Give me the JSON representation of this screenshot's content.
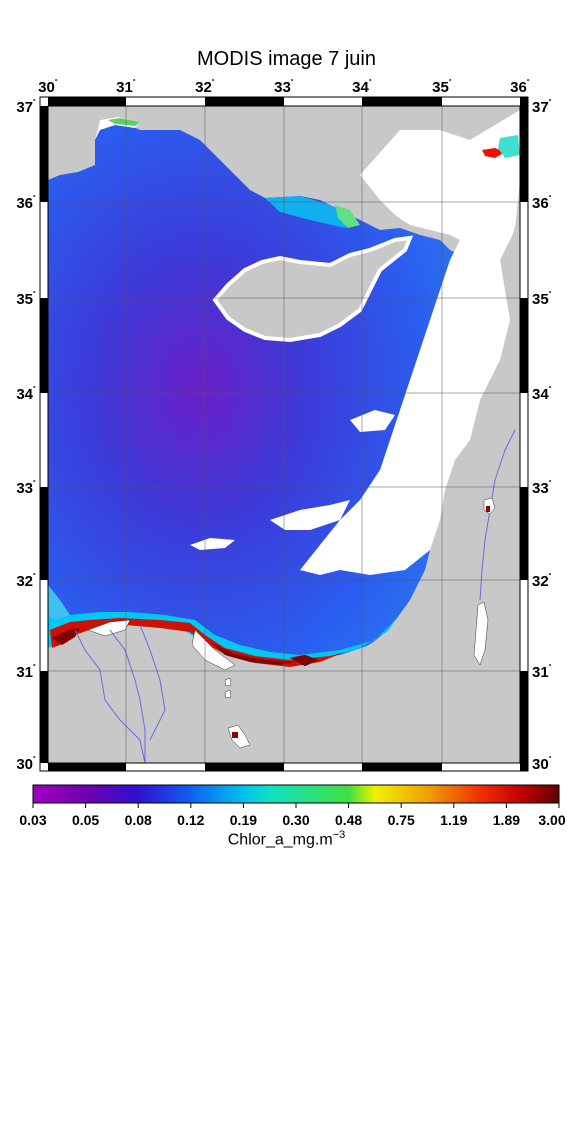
{
  "title": "MODIS image 7 juin",
  "map": {
    "lon_labels": [
      "30",
      "31",
      "32",
      "33",
      "34",
      "35",
      "36"
    ],
    "lat_labels": [
      "37",
      "36",
      "35",
      "34",
      "33",
      "32",
      "31",
      "30"
    ],
    "degree_symbol": "˚",
    "colors": {
      "land": "#c8c8c8",
      "cloud": "#ffffff",
      "sea_low": "#2040e0",
      "river": "#6a6adf"
    }
  },
  "colorbar": {
    "ticks": [
      "0.03",
      "0.05",
      "0.08",
      "0.12",
      "0.19",
      "0.30",
      "0.48",
      "0.75",
      "1.19",
      "1.89",
      "3.00"
    ],
    "label_main": "Chlor_a_mg.m",
    "label_sup": "−3",
    "scale": "log",
    "range": [
      0.03,
      3.0
    ]
  }
}
